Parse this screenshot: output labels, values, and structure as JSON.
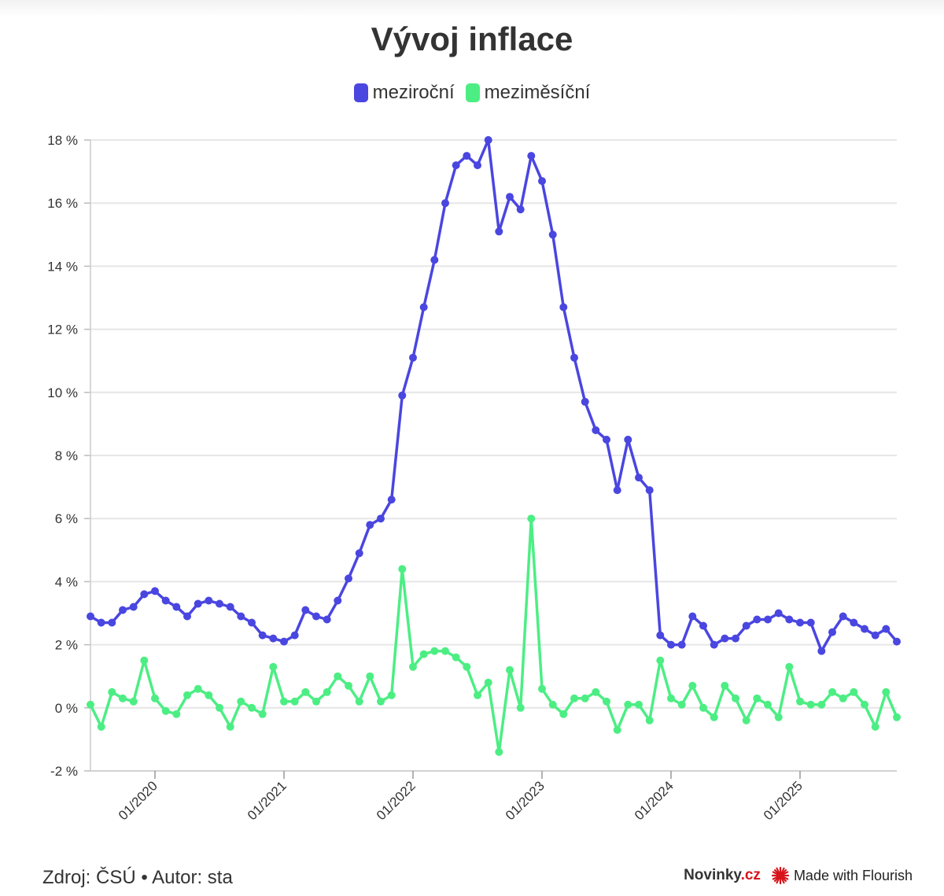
{
  "colors": {
    "yoy": "#4a46e0",
    "mom": "#4cee84",
    "grid": "#e6e6e6",
    "text": "#333333"
  },
  "chart_data": {
    "type": "line",
    "title": "Vývoj inflace",
    "x_start": "2019-07",
    "x_end": "2025-11",
    "x_ticks": [
      "01/2020",
      "01/2021",
      "01/2022",
      "01/2023",
      "01/2024",
      "01/2025"
    ],
    "y_ticks": [
      "-2 %",
      "0 %",
      "2 %",
      "4 %",
      "6 %",
      "8 %",
      "10 %",
      "12 %",
      "14 %",
      "16 %",
      "18 %"
    ],
    "ylim": [
      -2,
      18
    ],
    "series": [
      {
        "name": "meziroční",
        "values": [
          2.9,
          2.7,
          2.7,
          3.1,
          3.2,
          3.6,
          3.7,
          3.4,
          3.2,
          2.9,
          3.3,
          3.4,
          3.3,
          3.2,
          2.9,
          2.7,
          2.3,
          2.2,
          2.1,
          2.3,
          3.1,
          2.9,
          2.8,
          3.4,
          4.1,
          4.9,
          5.8,
          6.0,
          6.6,
          9.9,
          11.1,
          12.7,
          14.2,
          16.0,
          17.2,
          17.5,
          17.2,
          18.0,
          15.1,
          16.2,
          15.8,
          17.5,
          16.7,
          15.0,
          12.7,
          11.1,
          9.7,
          8.8,
          8.5,
          6.9,
          8.5,
          7.3,
          6.9,
          2.3,
          2.0,
          2.0,
          2.9,
          2.6,
          2.0,
          2.2,
          2.2,
          2.6,
          2.8,
          2.8,
          3.0,
          2.8,
          2.7,
          2.7,
          1.8,
          2.4,
          2.9,
          2.7,
          2.5,
          2.3,
          2.5,
          2.1
        ]
      },
      {
        "name": "meziměsíční",
        "values": [
          0.1,
          -0.6,
          0.5,
          0.3,
          0.2,
          1.5,
          0.3,
          -0.1,
          -0.2,
          0.4,
          0.6,
          0.4,
          0.0,
          -0.6,
          0.2,
          0.0,
          -0.2,
          1.3,
          0.2,
          0.2,
          0.5,
          0.2,
          0.5,
          1.0,
          0.7,
          0.2,
          1.0,
          0.2,
          0.4,
          4.4,
          1.3,
          1.7,
          1.8,
          1.8,
          1.6,
          1.3,
          0.4,
          0.8,
          -1.4,
          1.2,
          0.0,
          6.0,
          0.6,
          0.1,
          -0.2,
          0.3,
          0.3,
          0.5,
          0.2,
          -0.7,
          0.1,
          0.1,
          -0.4,
          1.5,
          0.3,
          0.1,
          0.7,
          0.0,
          -0.3,
          0.7,
          0.3,
          -0.4,
          0.3,
          0.1,
          -0.3,
          1.3,
          0.2,
          0.1,
          0.1,
          0.5,
          0.3,
          0.5,
          0.1,
          -0.6,
          0.5,
          -0.3
        ]
      }
    ]
  },
  "footer": {
    "source": "Zdroj: ČSÚ • Autor: sta",
    "brand_main": "Novinky",
    "brand_tld": ".cz",
    "flourish_label": "Made with Flourish"
  }
}
